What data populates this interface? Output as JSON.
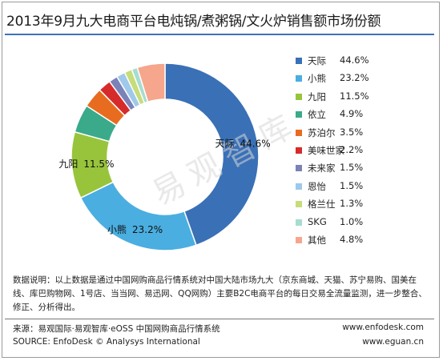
{
  "chart_data": {
    "type": "pie",
    "donut": true,
    "title": "2013年9月九大电商平台电炖锅/煮粥锅/文火炉销售额市场份额",
    "categories": [
      "天际",
      "小熊",
      "九阳",
      "依立",
      "苏泊尔",
      "美味世家",
      "未来家",
      "恩怡",
      "格兰仕",
      "SKG",
      "其他"
    ],
    "values": [
      44.6,
      23.2,
      11.5,
      4.9,
      3.5,
      2.2,
      1.5,
      1.5,
      1.3,
      1.0,
      4.8
    ],
    "value_labels": [
      "44.6%",
      "23.2%",
      "11.5%",
      "4.9%",
      "3.5%",
      "2.2%",
      "1.5%",
      "1.5%",
      "1.3%",
      "1.0%",
      "4.8%"
    ],
    "slice_labels": [
      {
        "name": "天际",
        "value": "44.6%"
      },
      {
        "name": "小熊",
        "value": "23.2%"
      },
      {
        "name": "九阳",
        "value": "11.5%"
      }
    ],
    "colors": [
      "#3a70b6",
      "#4aaee0",
      "#98c43c",
      "#3aaa8a",
      "#e86c1f",
      "#d62b2b",
      "#7b82b8",
      "#9ec9ea",
      "#c7dc7a",
      "#a6ddd0",
      "#f5a68c"
    ],
    "legend_position": "right"
  },
  "watermark": "易观智库",
  "note": "数据说明：以上数据是通过中国网购商品行情系统对中国大陆市场九大（京东商城、天猫、苏宁易购、国美在线、库巴购物网、1号店、当当网、易迅网、QQ网购）主要B2C电商平台的每日交易全流量监测，进一步整合、修正、分析得出。",
  "footer": {
    "source_cn": "来源：易观国际·易观智库·eOSS 中国网购商品行情系统",
    "source_en": "SOURCE: EnfoDesk © Analysys International",
    "web1": "www.enfodesk.com",
    "web2": "www.eguan.cn"
  }
}
